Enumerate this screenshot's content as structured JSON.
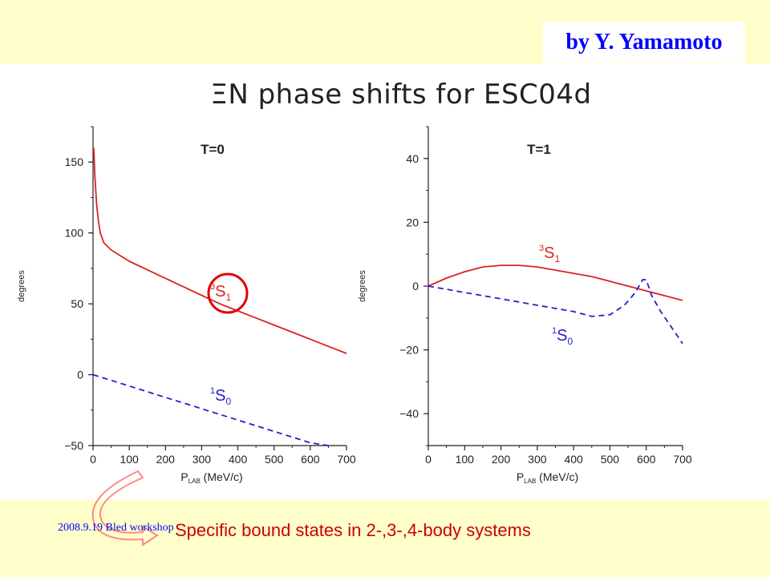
{
  "header": {
    "author": "by Y. Yamamoto"
  },
  "figure": {
    "title": "ΞN phase shifts for ESC04d"
  },
  "footer": {
    "date_label": "2008.9.19 Bled workshop",
    "caption": "Specific bound states in 2-,3-,4-body systems"
  },
  "colors": {
    "band": "#ffffcc",
    "s1_curve": "#dd2222",
    "s0_curve": "#2222cc",
    "author_text": "#0000ff",
    "caption_text": "#cc0000",
    "arrow": "#ff8888"
  },
  "icons": {
    "highlight": "red-circle-icon",
    "arrow": "curved-arrow-icon"
  },
  "chart_data": [
    {
      "type": "line",
      "title": "T=0",
      "xlabel_main": "P",
      "xlabel_sub": "LAB",
      "xlabel_unit": "(MeV/c)",
      "ylabel": "degrees",
      "xlim": [
        0,
        700
      ],
      "ylim": [
        -50,
        175
      ],
      "xticks": [
        "0",
        "100",
        "200",
        "300",
        "400",
        "500",
        "600",
        "700"
      ],
      "xtick_values": [
        0,
        100,
        200,
        300,
        400,
        500,
        600,
        700
      ],
      "yticks": [
        "150",
        "100",
        "50",
        "0",
        "−50"
      ],
      "ytick_values": [
        150,
        100,
        50,
        0,
        -50
      ],
      "series": [
        {
          "name": "3S1",
          "label_pre": "3",
          "label_main": "S",
          "label_sub": "1",
          "dash": false,
          "x": [
            2,
            5,
            10,
            15,
            20,
            30,
            50,
            75,
            100,
            150,
            200,
            250,
            300,
            350,
            400,
            450,
            500,
            550,
            600,
            650,
            700
          ],
          "y": [
            160,
            140,
            120,
            108,
            100,
            93,
            88,
            84,
            80,
            74,
            68,
            62,
            56,
            50,
            45,
            40,
            35,
            30,
            25,
            20,
            15
          ]
        },
        {
          "name": "1S0",
          "label_pre": "1",
          "label_main": "S",
          "label_sub": "0",
          "dash": true,
          "x": [
            0,
            50,
            100,
            150,
            200,
            250,
            300,
            350,
            400,
            450,
            500,
            550,
            600,
            650
          ],
          "y": [
            0,
            -4,
            -8,
            -12,
            -16,
            -20,
            -24,
            -28,
            -32,
            -36,
            -40,
            -44,
            -48,
            -51
          ]
        }
      ],
      "highlight": {
        "series": "3S1"
      }
    },
    {
      "type": "line",
      "title": "T=1",
      "xlabel_main": "P",
      "xlabel_sub": "LAB",
      "xlabel_unit": "(MeV/c)",
      "ylabel": "degrees",
      "xlim": [
        0,
        700
      ],
      "ylim": [
        -50,
        50
      ],
      "xticks": [
        "0",
        "100",
        "200",
        "300",
        "400",
        "500",
        "600",
        "700"
      ],
      "xtick_values": [
        0,
        100,
        200,
        300,
        400,
        500,
        600,
        700
      ],
      "yticks": [
        "40",
        "20",
        "0",
        "−20",
        "−40"
      ],
      "ytick_values": [
        40,
        20,
        0,
        -20,
        -40
      ],
      "series": [
        {
          "name": "3S1",
          "label_pre": "3",
          "label_main": "S",
          "label_sub": "1",
          "dash": false,
          "x": [
            0,
            50,
            100,
            150,
            200,
            250,
            300,
            350,
            400,
            450,
            500,
            550,
            600,
            650,
            700
          ],
          "y": [
            0,
            2.5,
            4.5,
            6,
            6.5,
            6.5,
            6,
            5,
            4,
            3,
            1.5,
            0,
            -1.5,
            -3,
            -4.5
          ]
        },
        {
          "name": "1S0",
          "label_pre": "1",
          "label_main": "S",
          "label_sub": "0",
          "dash": true,
          "x": [
            0,
            100,
            200,
            300,
            400,
            450,
            500,
            540,
            570,
            590,
            600,
            615,
            640,
            670,
            700
          ],
          "y": [
            0,
            -2,
            -4,
            -6,
            -8,
            -9.5,
            -9,
            -6,
            -2,
            2,
            2,
            -3,
            -8,
            -13,
            -18
          ]
        }
      ]
    }
  ]
}
